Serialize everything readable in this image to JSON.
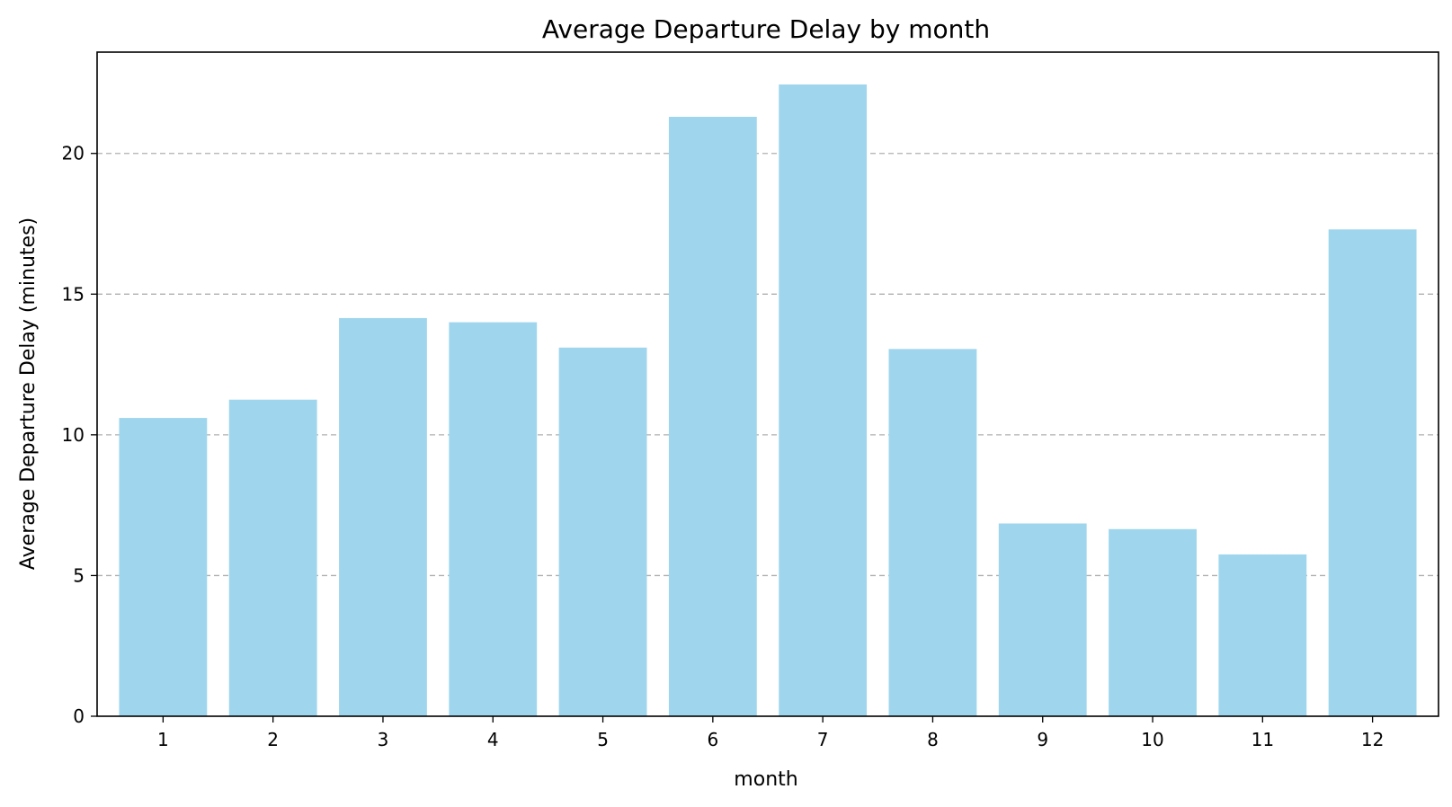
{
  "chart_data": {
    "type": "bar",
    "title": "Average Departure Delay by month",
    "xlabel": "month",
    "ylabel": "Average Departure Delay (minutes)",
    "categories": [
      "1",
      "2",
      "3",
      "4",
      "5",
      "6",
      "7",
      "8",
      "9",
      "10",
      "11",
      "12"
    ],
    "values": [
      10.6,
      11.25,
      14.15,
      14.0,
      13.1,
      21.3,
      22.45,
      13.05,
      6.85,
      6.65,
      5.75,
      17.3
    ],
    "ylim": [
      0,
      23.6
    ],
    "yticks": [
      0,
      5,
      10,
      15,
      20
    ],
    "grid": "y-dashed",
    "bar_color": "#9fd6ed",
    "legend": "none"
  }
}
